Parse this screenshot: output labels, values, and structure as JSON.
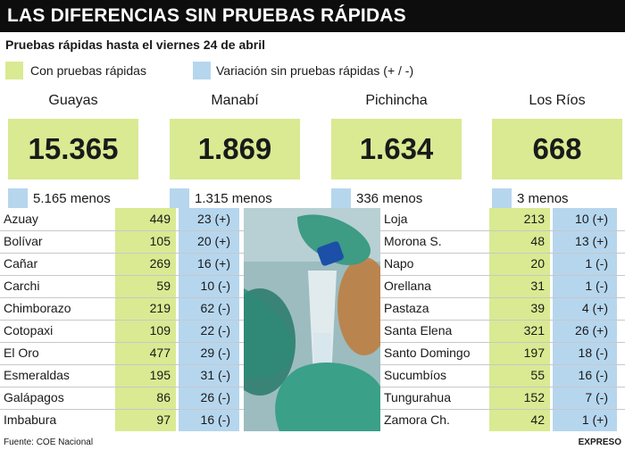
{
  "header": {
    "title": "LAS DIFERENCIAS SIN PRUEBAS RÁPIDAS",
    "subtitle": "Pruebas rápidas hasta el viernes 24 de abril"
  },
  "legend": {
    "with_tests": "Con pruebas rápidas",
    "variation": "Variación sin pruebas rápidas (+ / -)",
    "with_tests_color": "#d9ea92",
    "variation_color": "#b6d6ee"
  },
  "regions": [
    {
      "name": "Guayas",
      "value": "15.365",
      "variation": "5.165 menos"
    },
    {
      "name": "Manabí",
      "value": "1.869",
      "variation": "1.315 menos"
    },
    {
      "name": "Pichincha",
      "value": "1.634",
      "variation": "336 menos"
    },
    {
      "name": "Los Ríos",
      "value": "668",
      "variation": "3 menos"
    }
  ],
  "table_left": [
    {
      "province": "Azuay",
      "count": "449",
      "variation": "23 (+)"
    },
    {
      "province": "Bolívar",
      "count": "105",
      "variation": "20 (+)"
    },
    {
      "province": "Cañar",
      "count": "269",
      "variation": "16 (+)"
    },
    {
      "province": "Carchi",
      "count": "59",
      "variation": "10 (-)"
    },
    {
      "province": "Chimborazo",
      "count": "219",
      "variation": "62 (-)"
    },
    {
      "province": "Cotopaxi",
      "count": "109",
      "variation": "22 (-)"
    },
    {
      "province": "El Oro",
      "count": "477",
      "variation": "29 (-)"
    },
    {
      "province": "Esmeraldas",
      "count": "195",
      "variation": "31 (-)"
    },
    {
      "province": "Galápagos",
      "count": "86",
      "variation": "26 (-)"
    },
    {
      "province": "Imbabura",
      "count": "97",
      "variation": "16 (-)"
    }
  ],
  "table_right": [
    {
      "province": "Loja",
      "count": "213",
      "variation": "10 (+)"
    },
    {
      "province": "Morona S.",
      "count": "48",
      "variation": "13 (+)"
    },
    {
      "province": "Napo",
      "count": "20",
      "variation": "1 (-)"
    },
    {
      "province": "Orellana",
      "count": "31",
      "variation": "1 (-)"
    },
    {
      "province": "Pastaza",
      "count": "39",
      "variation": "4 (+)"
    },
    {
      "province": "Santa Elena",
      "count": "321",
      "variation": "26 (+)"
    },
    {
      "province": "Santo Domingo",
      "count": "197",
      "variation": "18 (-)"
    },
    {
      "province": "Sucumbíos",
      "count": "55",
      "variation": "16 (-)"
    },
    {
      "province": "Tungurahua",
      "count": "152",
      "variation": "7 (-)"
    },
    {
      "province": "Zamora Ch.",
      "count": "42",
      "variation": "1 (+)"
    }
  ],
  "footer": {
    "source": "Fuente: COE Nacional",
    "brand": "EXPRESO"
  }
}
